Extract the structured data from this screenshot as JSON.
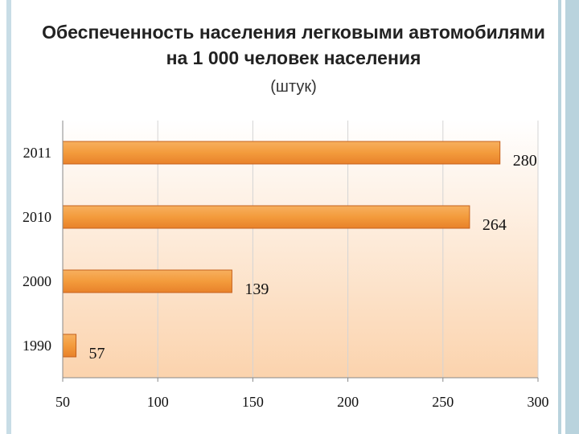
{
  "title_line1": "Обеспеченность населения легковыми автомобилями",
  "title_line2": "на 1 000 человек населения",
  "subtitle": "(штук)",
  "colors": {
    "bar_fill": "#f39b3c",
    "bar_edge": "#c5601b",
    "plot_bg_top": "#ffffff",
    "plot_bg_bottom": "#fbd3ad",
    "grid": "#d4d4d4",
    "accent_rule": "#b9d3dd"
  },
  "chart_data": {
    "type": "bar",
    "orientation": "horizontal",
    "categories": [
      "2011",
      "2010",
      "2000",
      "1990"
    ],
    "values": [
      280,
      264,
      139,
      57
    ],
    "data_labels": [
      "280",
      "264",
      "139",
      "57"
    ],
    "xlim": [
      50,
      300
    ],
    "xticks": [
      50,
      100,
      150,
      200,
      250,
      300
    ],
    "xtick_labels": [
      "50",
      "100",
      "150",
      "200",
      "250",
      "300"
    ],
    "grid": true,
    "legend": "none"
  }
}
